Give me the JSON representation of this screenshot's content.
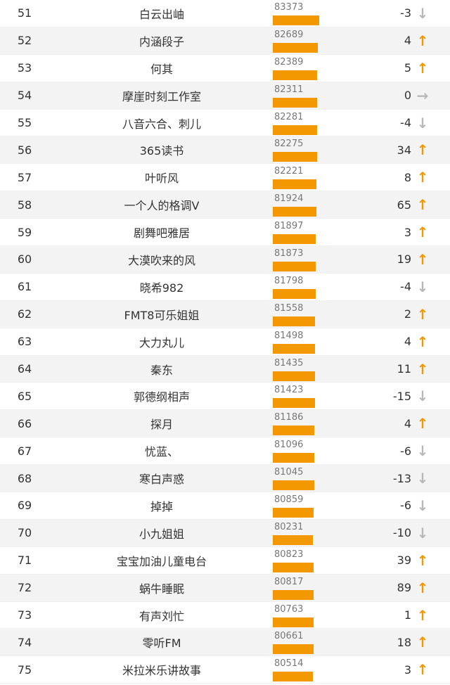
{
  "colors": {
    "accent": "#f39800",
    "neutral_arrow": "#b8b8b8",
    "row_alt": "#f3f3f3"
  },
  "max_score": 83373,
  "rows": [
    {
      "rank": "51",
      "name": "白云出岫",
      "score": "83373",
      "change": "-3",
      "dir": "down"
    },
    {
      "rank": "52",
      "name": "内涵段子",
      "score": "82689",
      "change": "4",
      "dir": "up"
    },
    {
      "rank": "53",
      "name": "何其",
      "score": "82389",
      "change": "5",
      "dir": "up"
    },
    {
      "rank": "54",
      "name": "摩崖时刻工作室",
      "score": "82311",
      "change": "0",
      "dir": "flat"
    },
    {
      "rank": "55",
      "name": "八音六合、刺儿",
      "score": "82281",
      "change": "-4",
      "dir": "down"
    },
    {
      "rank": "56",
      "name": "365读书",
      "score": "82275",
      "change": "34",
      "dir": "up"
    },
    {
      "rank": "57",
      "name": "叶听风",
      "score": "82221",
      "change": "8",
      "dir": "up"
    },
    {
      "rank": "58",
      "name": "一个人的格调V",
      "score": "81924",
      "change": "65",
      "dir": "up"
    },
    {
      "rank": "59",
      "name": "剧舞吧雅居",
      "score": "81897",
      "change": "3",
      "dir": "up"
    },
    {
      "rank": "60",
      "name": "大漠吹来的风",
      "score": "81873",
      "change": "19",
      "dir": "up"
    },
    {
      "rank": "61",
      "name": "晓希982",
      "score": "81798",
      "change": "-4",
      "dir": "down"
    },
    {
      "rank": "62",
      "name": "FMT8可乐姐姐",
      "score": "81558",
      "change": "2",
      "dir": "up"
    },
    {
      "rank": "63",
      "name": "大力丸儿",
      "score": "81498",
      "change": "4",
      "dir": "up"
    },
    {
      "rank": "64",
      "name": "秦东",
      "score": "81435",
      "change": "11",
      "dir": "up"
    },
    {
      "rank": "65",
      "name": "郭德纲相声",
      "score": "81423",
      "change": "-15",
      "dir": "down"
    },
    {
      "rank": "66",
      "name": "探月",
      "score": "81186",
      "change": "4",
      "dir": "up"
    },
    {
      "rank": "67",
      "name": "忧蓝、",
      "score": "81096",
      "change": "-6",
      "dir": "down"
    },
    {
      "rank": "68",
      "name": "寒白声惑",
      "score": "81045",
      "change": "-13",
      "dir": "down"
    },
    {
      "rank": "69",
      "name": "掉掉",
      "score": "80859",
      "change": "-6",
      "dir": "down"
    },
    {
      "rank": "70",
      "name": "小九姐姐",
      "score": "80231",
      "change": "-10",
      "dir": "down"
    },
    {
      "rank": "71",
      "name": "宝宝加油儿童电台",
      "score": "80823",
      "change": "39",
      "dir": "up"
    },
    {
      "rank": "72",
      "name": "蜗牛睡眠",
      "score": "80817",
      "change": "89",
      "dir": "up"
    },
    {
      "rank": "73",
      "name": "有声刘忙",
      "score": "80763",
      "change": "1",
      "dir": "up"
    },
    {
      "rank": "74",
      "name": "零听FM",
      "score": "80661",
      "change": "18",
      "dir": "up"
    },
    {
      "rank": "75",
      "name": "米拉米乐讲故事",
      "score": "80514",
      "change": "3",
      "dir": "up"
    }
  ]
}
